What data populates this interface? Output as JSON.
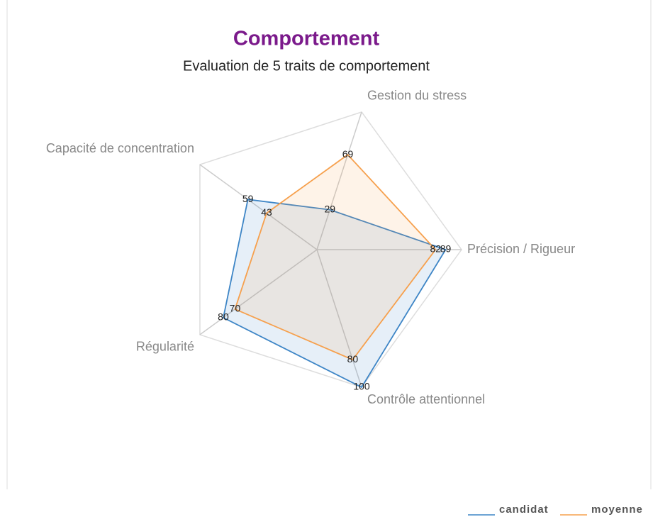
{
  "chart_data": {
    "type": "radar",
    "title": "Comportement",
    "subtitle": "Evaluation de 5 traits de comportement",
    "categories": [
      "Gestion du stress",
      "Précision / Rigueur",
      "Contrôle attentionnel",
      "Régularité",
      "Capacité de concentration"
    ],
    "series": [
      {
        "name": "candidat",
        "color": "#3d85c6",
        "values": [
          29,
          89,
          100,
          80,
          59
        ]
      },
      {
        "name": "moyenne",
        "color": "#f6a04d",
        "values": [
          69,
          82,
          80,
          70,
          43
        ]
      }
    ],
    "ylim": [
      0,
      100
    ],
    "legend": "bottom-right"
  }
}
